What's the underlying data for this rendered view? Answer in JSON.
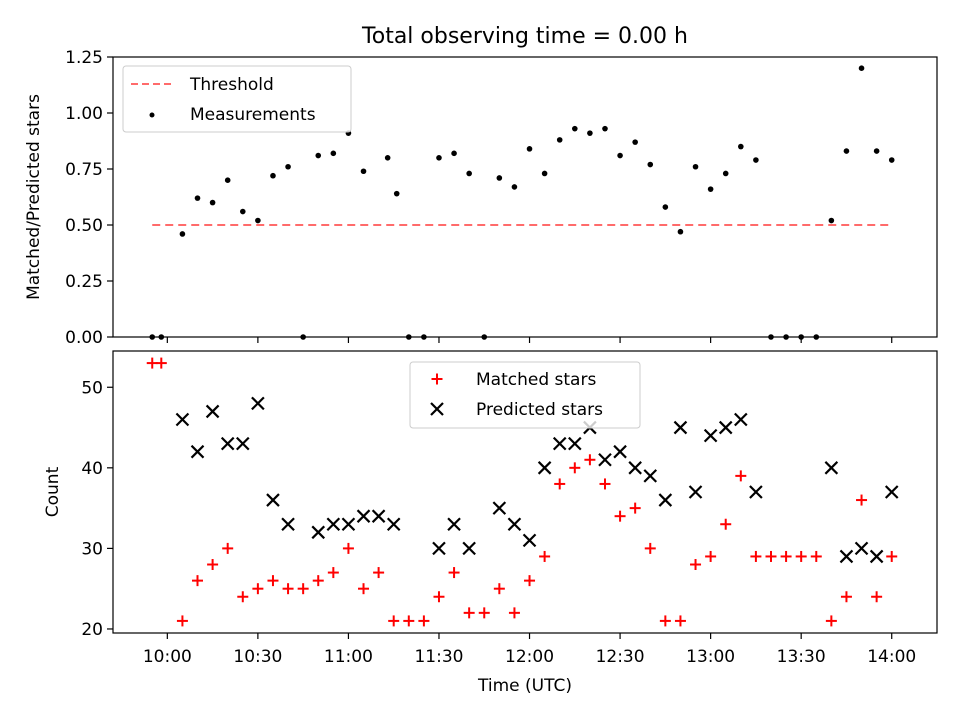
{
  "figure": {
    "title": "Total observing time = 0.00 h",
    "xlabel": "Time (UTC)",
    "xticks": [
      "10:00",
      "10:30",
      "11:00",
      "11:30",
      "12:00",
      "12:30",
      "13:00",
      "13:30",
      "14:00"
    ]
  },
  "colors": {
    "threshold": "#ff6b6b",
    "measurements": "#000000",
    "matched": "#ff0000",
    "predicted": "#000000"
  },
  "chart_data": [
    {
      "type": "scatter",
      "ylabel": "Matched/Predicted stars",
      "ylim": [
        0,
        1.25
      ],
      "yticks": [
        "0.00",
        "0.25",
        "0.50",
        "0.75",
        "1.00",
        "1.25"
      ],
      "legend_placement": "upper-left",
      "threshold": {
        "name": "Threshold",
        "value": 0.5,
        "x_start": "09:55",
        "x_end": "14:00"
      },
      "series": [
        {
          "name": "Measurements",
          "x": [
            "09:55",
            "09:58",
            "10:05",
            "10:10",
            "10:15",
            "10:20",
            "10:25",
            "10:30",
            "10:35",
            "10:40",
            "10:45",
            "10:50",
            "10:55",
            "11:00",
            "11:05",
            "11:13",
            "11:16",
            "11:20",
            "11:25",
            "11:30",
            "11:35",
            "11:40",
            "11:45",
            "11:50",
            "11:55",
            "12:00",
            "12:05",
            "12:10",
            "12:15",
            "12:20",
            "12:25",
            "12:30",
            "12:35",
            "12:40",
            "12:45",
            "12:50",
            "12:55",
            "13:00",
            "13:05",
            "13:10",
            "13:15",
            "13:20",
            "13:25",
            "13:30",
            "13:35",
            "13:40",
            "13:45",
            "13:50",
            "13:55",
            "14:00"
          ],
          "values": [
            0.0,
            0.0,
            0.46,
            0.62,
            0.6,
            0.7,
            0.56,
            0.52,
            0.72,
            0.76,
            0.0,
            0.81,
            0.82,
            0.91,
            0.74,
            0.8,
            0.64,
            0.0,
            0.0,
            0.8,
            0.82,
            0.73,
            0.0,
            0.71,
            0.67,
            0.84,
            0.73,
            0.88,
            0.93,
            0.91,
            0.93,
            0.81,
            0.87,
            0.77,
            0.58,
            0.47,
            0.76,
            0.66,
            0.73,
            0.85,
            0.79,
            0.0,
            0.0,
            0.0,
            0.0,
            0.52,
            0.83,
            1.2,
            0.83,
            0.79
          ]
        }
      ]
    },
    {
      "type": "scatter",
      "ylabel": "Count",
      "ylim": [
        19.5,
        54.5
      ],
      "yticks": [
        "20",
        "30",
        "40",
        "50"
      ],
      "legend_placement": "upper-center",
      "series": [
        {
          "name": "Matched stars",
          "x": [
            "09:55",
            "09:58",
            "10:05",
            "10:10",
            "10:15",
            "10:20",
            "10:25",
            "10:30",
            "10:35",
            "10:40",
            "10:45",
            "10:50",
            "10:55",
            "11:00",
            "11:05",
            "11:10",
            "11:15",
            "11:20",
            "11:25",
            "11:30",
            "11:35",
            "11:40",
            "11:45",
            "11:50",
            "11:55",
            "12:00",
            "12:05",
            "12:10",
            "12:15",
            "12:20",
            "12:25",
            "12:30",
            "12:35",
            "12:40",
            "12:45",
            "12:50",
            "12:55",
            "13:00",
            "13:05",
            "13:10",
            "13:15",
            "13:20",
            "13:25",
            "13:30",
            "13:35",
            "13:40",
            "13:45",
            "13:50",
            "13:55",
            "14:00"
          ],
          "values": [
            53,
            53,
            21,
            26,
            28,
            30,
            24,
            25,
            26,
            25,
            25,
            26,
            27,
            30,
            25,
            27,
            21,
            21,
            21,
            24,
            27,
            22,
            22,
            25,
            22,
            26,
            29,
            38,
            40,
            41,
            38,
            34,
            35,
            30,
            21,
            21,
            28,
            29,
            33,
            39,
            29,
            29,
            29,
            29,
            29,
            21,
            24,
            36,
            24,
            29
          ]
        },
        {
          "name": "Predicted stars",
          "x": [
            "10:05",
            "10:10",
            "10:15",
            "10:20",
            "10:25",
            "10:30",
            "10:35",
            "10:40",
            "10:50",
            "10:55",
            "11:00",
            "11:05",
            "11:10",
            "11:15",
            "11:30",
            "11:35",
            "11:40",
            "11:50",
            "11:55",
            "12:00",
            "12:05",
            "12:10",
            "12:15",
            "12:20",
            "12:25",
            "12:30",
            "12:35",
            "12:40",
            "12:45",
            "12:50",
            "12:55",
            "13:00",
            "13:05",
            "13:10",
            "13:15",
            "13:40",
            "13:45",
            "13:50",
            "13:55",
            "14:00"
          ],
          "values": [
            46,
            42,
            47,
            43,
            43,
            48,
            36,
            33,
            32,
            33,
            33,
            34,
            34,
            33,
            30,
            33,
            30,
            35,
            33,
            31,
            40,
            43,
            43,
            45,
            41,
            42,
            40,
            39,
            36,
            45,
            37,
            44,
            45,
            46,
            37,
            40,
            29,
            30,
            29,
            37
          ]
        }
      ]
    }
  ]
}
